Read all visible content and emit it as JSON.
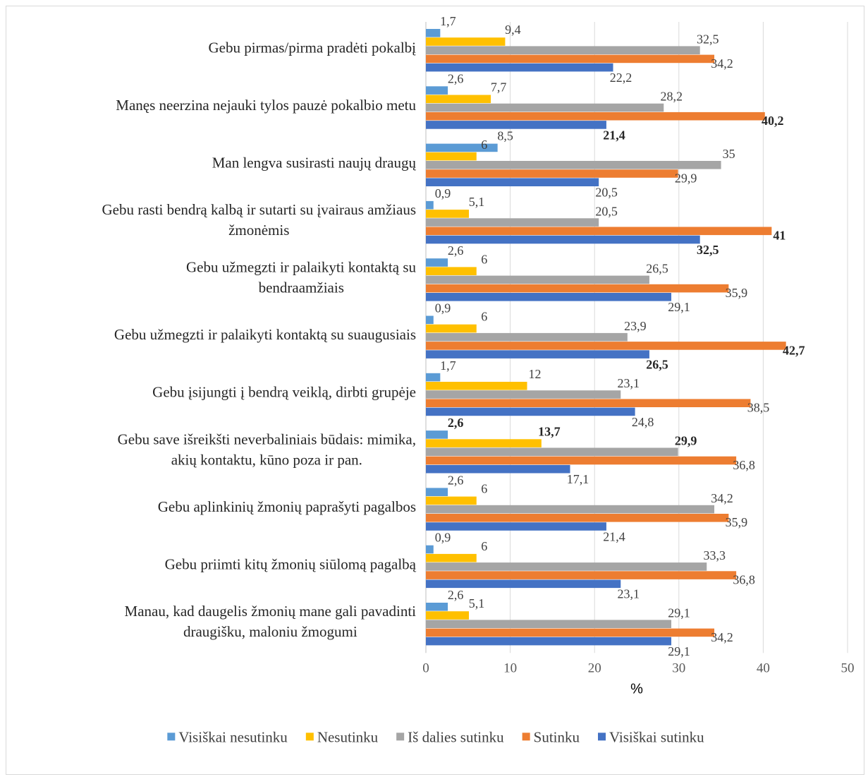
{
  "chart_data": {
    "type": "bar",
    "orientation": "horizontal",
    "categories": [
      [
        "Gebu pirmas/pirma pradėti pokalbį"
      ],
      [
        "Manęs neerzina nejauki tylos pauzė pokalbio metu"
      ],
      [
        "Man lengva susirasti naujų draugų"
      ],
      [
        "Gebu rasti bendrą kalbą ir sutarti su įvairaus amžiaus",
        "žmonėmis"
      ],
      [
        "Gebu užmegzti ir palaikyti kontaktą su",
        "bendraamžiais"
      ],
      [
        "Gebu užmegzti ir palaikyti kontaktą su suaugusiais"
      ],
      [
        "Gebu įsijungti į bendrą veiklą, dirbti grupėje"
      ],
      [
        "Gebu save išreikšti neverbaliniais būdais: mimika,",
        "akių kontaktu, kūno poza ir pan."
      ],
      [
        "Gebu aplinkinių žmonių paprašyti pagalbos"
      ],
      [
        "Gebu priimti kitų žmonių siūlomą pagalbą"
      ],
      [
        "Manau, kad daugelis žmonių mane gali pavadinti",
        "draugišku, maloniu žmogumi"
      ]
    ],
    "series": [
      {
        "name": "Visiškai nesutinku",
        "color": "#5B9BD5",
        "values": [
          1.7,
          2.6,
          8.5,
          0.9,
          2.6,
          0.9,
          1.7,
          2.6,
          2.6,
          0.9,
          2.6
        ],
        "labels": [
          "1,7",
          "2,6",
          "8,5",
          "0,9",
          "2,6",
          "0,9",
          "1,7",
          "2,6",
          "2,6",
          "0,9",
          "2,6"
        ],
        "bold": [
          false,
          false,
          false,
          false,
          false,
          false,
          false,
          true,
          false,
          false,
          false
        ]
      },
      {
        "name": "Nesutinku",
        "color": "#FFC000",
        "values": [
          9.4,
          7.7,
          6,
          5.1,
          6,
          6,
          12,
          13.7,
          6,
          6,
          5.1
        ],
        "labels": [
          "9,4",
          "7,7",
          "6",
          "5,1",
          "6",
          "6",
          "12",
          "13,7",
          "6",
          "6",
          "5,1"
        ],
        "bold": [
          false,
          false,
          false,
          false,
          false,
          false,
          false,
          true,
          false,
          false,
          false
        ]
      },
      {
        "name": "Iš dalies sutinku",
        "color": "#A5A5A5",
        "values": [
          32.5,
          28.2,
          35,
          20.5,
          26.5,
          23.9,
          23.1,
          29.9,
          34.2,
          33.3,
          29.1
        ],
        "labels": [
          "32,5",
          "28,2",
          "35",
          "20,5",
          "26,5",
          "23,9",
          "23,1",
          "29,9",
          "34,2",
          "33,3",
          "29,1"
        ],
        "bold": [
          false,
          false,
          false,
          false,
          false,
          false,
          false,
          true,
          false,
          false,
          false
        ]
      },
      {
        "name": "Sutinku",
        "color": "#ED7D31",
        "values": [
          34.2,
          40.2,
          29.9,
          41,
          35.9,
          42.7,
          38.5,
          36.8,
          35.9,
          36.8,
          34.2
        ],
        "labels": [
          "34,2",
          "40,2",
          "29,9",
          "41",
          "35,9",
          "42,7",
          "38,5",
          "36,8",
          "35,9",
          "36,8",
          "34,2"
        ],
        "bold": [
          false,
          true,
          false,
          true,
          false,
          true,
          false,
          false,
          false,
          false,
          false
        ]
      },
      {
        "name": "Visiškai sutinku",
        "color": "#4472C4",
        "values": [
          22.2,
          21.4,
          20.5,
          32.5,
          29.1,
          26.5,
          24.8,
          17.1,
          21.4,
          23.1,
          29.1
        ],
        "labels": [
          "22,2",
          "21,4",
          "20,5",
          "32,5",
          "29,1",
          "26,5",
          "24,8",
          "17,1",
          "21,4",
          "23,1",
          "29,1"
        ],
        "bold": [
          false,
          true,
          false,
          true,
          false,
          true,
          false,
          false,
          false,
          false,
          false
        ]
      }
    ],
    "xlabel": "%",
    "xlim": [
      0,
      50
    ],
    "xticks": [
      0,
      10,
      20,
      30,
      40,
      50
    ],
    "grid": "vertical",
    "legend": "bottom"
  }
}
